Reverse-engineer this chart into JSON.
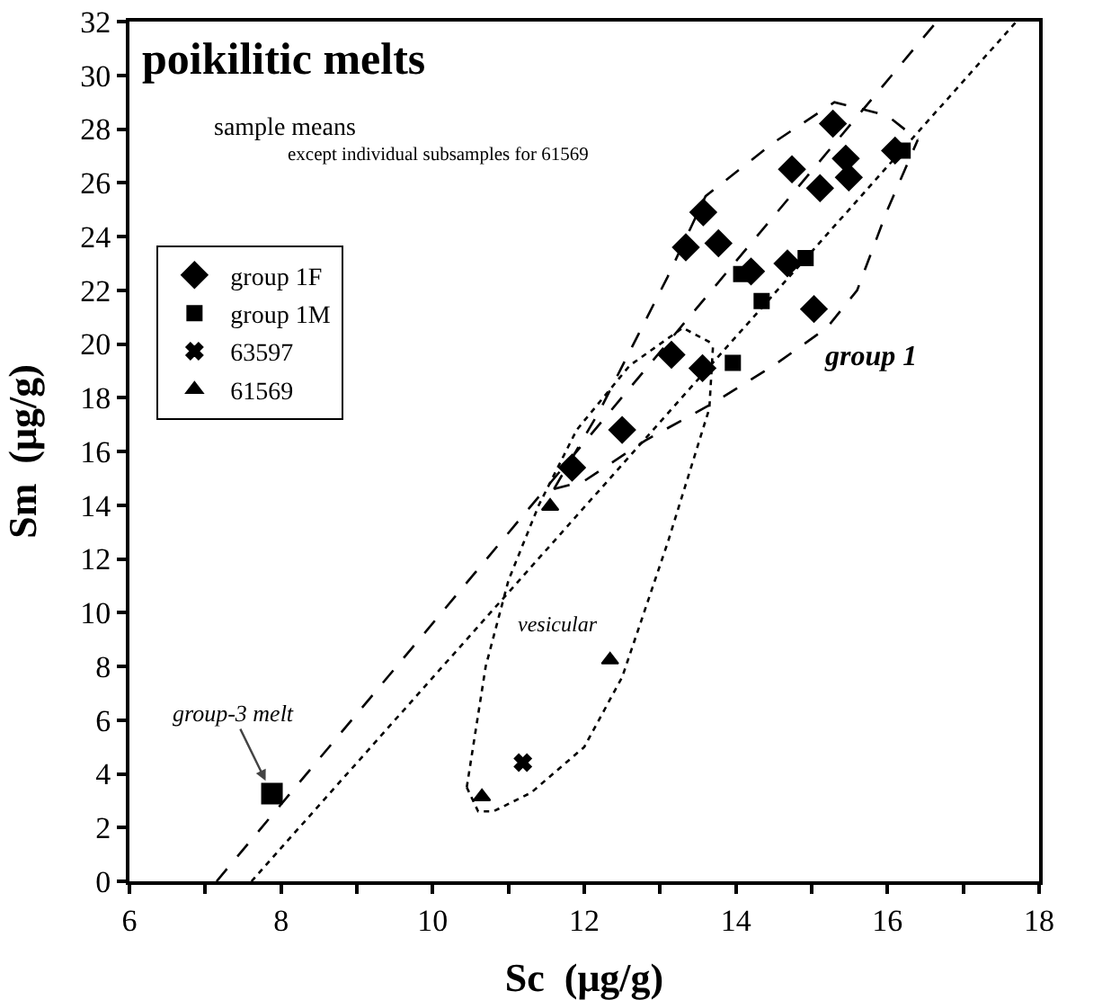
{
  "chart_data": {
    "type": "scatter",
    "title": "poikilitic melts",
    "subtitle": "sample means",
    "xlabel": "Sc  (μg/g)",
    "ylabel": "Sm  (μg/g)",
    "annotations": [
      "except individual subsamples for 61569",
      "group 1",
      "vesicular",
      {
        "text": "group-3 melt",
        "x": 7.88,
        "y": 3.26
      }
    ],
    "xlim": [
      6,
      18
    ],
    "xticks": [
      6,
      {
        "value": 7,
        "label": null
      },
      8,
      {
        "value": 9,
        "label": null
      },
      10,
      {
        "value": 11,
        "label": null
      },
      12,
      {
        "value": 13,
        "label": null
      },
      14,
      {
        "value": 15,
        "label": null
      },
      16,
      {
        "value": 17,
        "label": null
      },
      18
    ],
    "ylim": [
      0,
      32
    ],
    "yticks": [
      0,
      2,
      4,
      6,
      8,
      10,
      12,
      14,
      16,
      18,
      20,
      22,
      24,
      26,
      28,
      30,
      32
    ],
    "grid": false,
    "legend": "top left",
    "series": [
      {
        "name": "group 1F",
        "marker": "diamond",
        "color": "#000000",
        "x": [
          15.28,
          16.1,
          14.74,
          15.45,
          15.49,
          15.11,
          13.57,
          13.34,
          13.77,
          14.2,
          14.68,
          15.03,
          13.15,
          13.56,
          12.5,
          11.84
        ],
        "values": [
          28.2,
          27.2,
          26.5,
          26.9,
          26.2,
          25.8,
          24.9,
          23.6,
          23.75,
          22.7,
          23.0,
          21.3,
          19.6,
          19.1,
          16.8,
          15.4
        ]
      },
      {
        "name": "group 1M",
        "marker": "square",
        "color": "#000000",
        "x": [
          16.2,
          14.07,
          14.92,
          14.34,
          13.96
        ],
        "values": [
          27.2,
          22.6,
          23.2,
          21.6,
          19.3
        ]
      },
      {
        "name": "63597",
        "marker": "cross",
        "color": "#000000",
        "x": [
          11.19
        ],
        "values": [
          4.42
        ]
      },
      {
        "name": "61569",
        "marker": "triangle",
        "color": "#000000",
        "x": [
          11.55,
          12.34,
          10.65
        ],
        "values": [
          13.96,
          8.24,
          3.15
        ]
      },
      {
        "marker": "square",
        "color": "#000000",
        "x": [
          7.88
        ],
        "values": [
          3.26
        ]
      },
      {
        "type": "line",
        "line_style": "dashed",
        "marker": "none",
        "color": "#000000",
        "x": [
          7.15,
          16.65
        ],
        "values": [
          0,
          32
        ]
      },
      {
        "type": "line",
        "line_style": "dotted",
        "marker": "none",
        "color": "#000000",
        "x": [
          7.61,
          17.7
        ],
        "values": [
          0,
          32
        ]
      },
      {
        "type": "line",
        "line_style": "dashed",
        "marker": "none",
        "color": "#000000",
        "x": [
          11.6,
          12.2,
          13.1,
          13.6,
          14.5,
          15.3,
          16.0,
          16.4
        ],
        "values": [
          14.6,
          17.5,
          22.5,
          25.5,
          27.5,
          29.0,
          28.5,
          27.6
        ]
      },
      {
        "type": "line",
        "line_style": "dashed",
        "marker": "none",
        "color": "#000000",
        "x": [
          11.6,
          12.0,
          12.8,
          13.7,
          14.5,
          15.2,
          15.6,
          16.0,
          16.4
        ],
        "values": [
          14.6,
          14.9,
          16.4,
          17.8,
          19.2,
          20.6,
          22.0,
          25.0,
          27.6
        ]
      },
      {
        "type": "line",
        "line_style": "dotted",
        "marker": "none",
        "color": "#000000",
        "x": [
          10.45,
          10.7,
          11.0,
          11.4,
          11.9,
          12.6,
          13.3,
          13.7
        ],
        "values": [
          3.5,
          8.0,
          11.2,
          14.0,
          16.8,
          19.2,
          20.6,
          20.0
        ]
      },
      {
        "type": "line",
        "line_style": "dotted",
        "marker": "none",
        "color": "#000000",
        "x": [
          10.45,
          10.6,
          10.8,
          11.3,
          12.0,
          12.5,
          13.1,
          13.65,
          13.7
        ],
        "values": [
          3.5,
          2.6,
          2.6,
          3.3,
          5.0,
          7.6,
          12.6,
          17.6,
          20.0
        ]
      }
    ]
  }
}
